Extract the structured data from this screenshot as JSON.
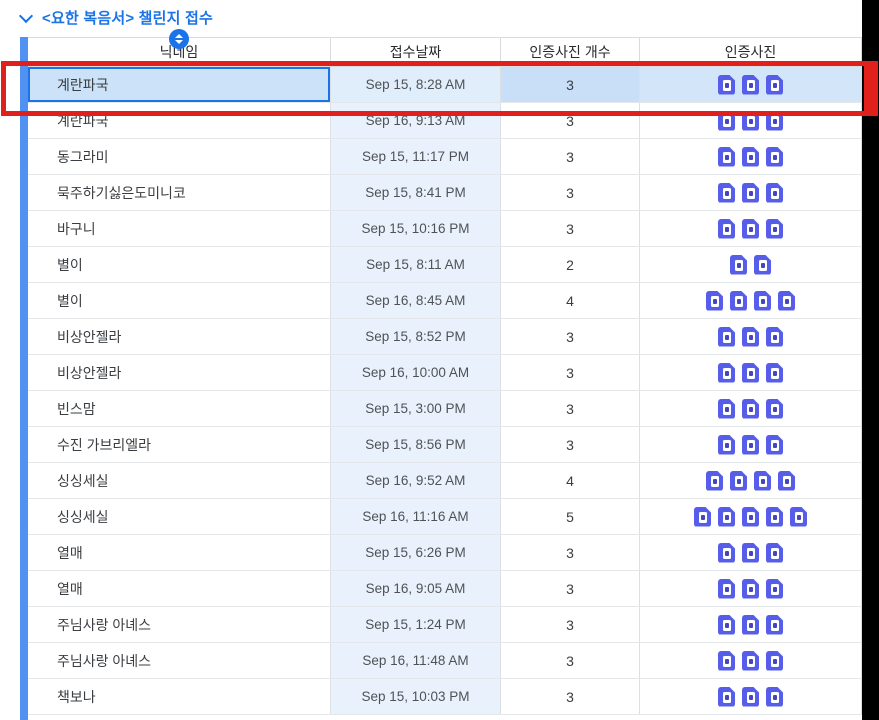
{
  "header": {
    "title": "<요한 복음서> 챌린지 접수",
    "collapse_icon": "chevron-down"
  },
  "table": {
    "columns": [
      {
        "key": "nickname",
        "label": "닉네임"
      },
      {
        "key": "date",
        "label": "접수날짜"
      },
      {
        "key": "count",
        "label": "인증사진 개수"
      },
      {
        "key": "photos",
        "label": "인증사진"
      }
    ],
    "sort_icon": "sort-up-down-badge",
    "photo_icon": "photo-file",
    "rows": [
      {
        "nickname": "계란파국",
        "date": "Sep 15, 8:28 AM",
        "count": "3",
        "photos": 3,
        "selected": true
      },
      {
        "nickname": "계란파국",
        "date": "Sep 16, 9:13 AM",
        "count": "3",
        "photos": 3,
        "selected": false
      },
      {
        "nickname": "동그라미",
        "date": "Sep 15, 11:17 PM",
        "count": "3",
        "photos": 3,
        "selected": false
      },
      {
        "nickname": "묵주하기싫은도미니코",
        "date": "Sep 15, 8:41 PM",
        "count": "3",
        "photos": 3,
        "selected": false
      },
      {
        "nickname": "바구니",
        "date": "Sep 15, 10:16 PM",
        "count": "3",
        "photos": 3,
        "selected": false
      },
      {
        "nickname": "별이",
        "date": "Sep 15, 8:11 AM",
        "count": "2",
        "photos": 2,
        "selected": false
      },
      {
        "nickname": "별이",
        "date": "Sep 16, 8:45 AM",
        "count": "4",
        "photos": 4,
        "selected": false
      },
      {
        "nickname": "비상안젤라",
        "date": "Sep 15, 8:52 PM",
        "count": "3",
        "photos": 3,
        "selected": false
      },
      {
        "nickname": "비상안젤라",
        "date": "Sep 16, 10:00 AM",
        "count": "3",
        "photos": 3,
        "selected": false
      },
      {
        "nickname": "빈스맘",
        "date": "Sep 15, 3:00 PM",
        "count": "3",
        "photos": 3,
        "selected": false
      },
      {
        "nickname": "수진 가브리엘라",
        "date": "Sep 15, 8:56 PM",
        "count": "3",
        "photos": 3,
        "selected": false
      },
      {
        "nickname": "싱싱세실",
        "date": "Sep 16, 9:52 AM",
        "count": "4",
        "photos": 4,
        "selected": false
      },
      {
        "nickname": "싱싱세실",
        "date": "Sep 16, 11:16 AM",
        "count": "5",
        "photos": 5,
        "selected": false
      },
      {
        "nickname": "열매",
        "date": "Sep 15, 6:26 PM",
        "count": "3",
        "photos": 3,
        "selected": false
      },
      {
        "nickname": "열매",
        "date": "Sep 16, 9:05 AM",
        "count": "3",
        "photos": 3,
        "selected": false
      },
      {
        "nickname": "주님사랑 아녜스",
        "date": "Sep 15, 1:24 PM",
        "count": "3",
        "photos": 3,
        "selected": false
      },
      {
        "nickname": "주님사랑 아녜스",
        "date": "Sep 16, 11:48 AM",
        "count": "3",
        "photos": 3,
        "selected": false
      },
      {
        "nickname": "책보나",
        "date": "Sep 15, 10:03 PM",
        "count": "3",
        "photos": 3,
        "selected": false
      }
    ]
  },
  "annotation": {
    "type": "red-highlight-box",
    "target_row": "계란파국 Sep 15, 8:28 AM"
  },
  "colors": {
    "accent_blue": "#1A73E8",
    "title_blue": "#1A73E8",
    "date_column_bg": "#E9F2FC",
    "selected_row_bg": "#CBE2F8",
    "file_icon_indigo": "#565DE8",
    "left_bar_blue": "#5191F1",
    "annotation_red": "#E1201E",
    "right_strip_black": "#000000"
  }
}
